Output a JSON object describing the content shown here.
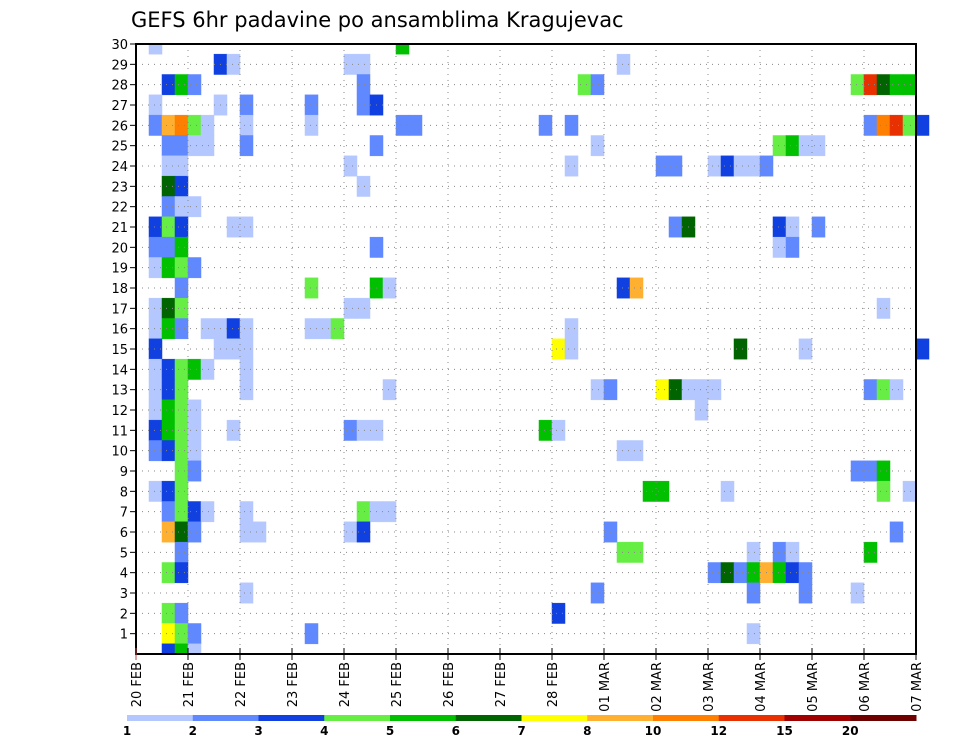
{
  "chart_data": {
    "type": "heatmap",
    "title": "GEFS 6hr padavine po ansamblima Kragujevac",
    "xlabel": "",
    "ylabel": "",
    "x_unit": "6-hour steps from 20 FEB 00z",
    "x_tick_labels": [
      "20 FEB",
      "21 FEB",
      "22 FEB",
      "23 FEB",
      "24 FEB",
      "25 FEB",
      "26 FEB",
      "27 FEB",
      "28 FEB",
      "01 MAR",
      "02 MAR",
      "03 MAR",
      "04 MAR",
      "05 MAR",
      "06 MAR",
      "07 MAR"
    ],
    "xlim": [
      0,
      60
    ],
    "y_ticks": [
      1,
      2,
      3,
      4,
      5,
      6,
      7,
      8,
      9,
      10,
      11,
      12,
      13,
      14,
      15,
      16,
      17,
      18,
      19,
      20,
      21,
      22,
      23,
      24,
      25,
      26,
      27,
      28,
      29,
      30
    ],
    "ylim": [
      0,
      30
    ],
    "grid": true,
    "colorbar": {
      "placement": "bottom",
      "labels": [
        "1",
        "2",
        "3",
        "4",
        "5",
        "6",
        "7",
        "8",
        "10",
        "12",
        "15",
        "20"
      ],
      "levels": [
        1,
        2,
        3,
        4,
        5,
        6,
        7,
        8,
        10,
        12,
        15,
        20
      ],
      "colors": [
        "#b4c8ff",
        "#6088ff",
        "#1040e0",
        "#66ee44",
        "#00c000",
        "#006400",
        "#ffff00",
        "#ffb030",
        "#ff7f00",
        "#e83000",
        "#a00000",
        "#6e0000"
      ]
    },
    "cells_format": "[step, member, level]",
    "cells": [
      [
        1,
        30,
        1
      ],
      [
        20,
        30,
        5
      ],
      [
        6,
        29,
        3
      ],
      [
        7,
        29,
        1
      ],
      [
        16,
        29,
        1
      ],
      [
        17,
        29,
        1
      ],
      [
        37,
        29,
        1
      ],
      [
        2,
        28,
        3
      ],
      [
        3,
        28,
        5
      ],
      [
        4,
        28,
        2
      ],
      [
        17,
        28,
        2
      ],
      [
        34,
        28,
        4
      ],
      [
        35,
        28,
        2
      ],
      [
        55,
        28,
        4
      ],
      [
        56,
        28,
        12
      ],
      [
        57,
        28,
        6
      ],
      [
        58,
        28,
        5
      ],
      [
        59,
        28,
        5
      ],
      [
        1,
        27,
        1
      ],
      [
        6,
        27,
        1
      ],
      [
        8,
        27,
        2
      ],
      [
        13,
        27,
        2
      ],
      [
        17,
        27,
        2
      ],
      [
        18,
        27,
        3
      ],
      [
        1,
        26,
        2
      ],
      [
        2,
        26,
        8
      ],
      [
        3,
        26,
        10
      ],
      [
        4,
        26,
        4
      ],
      [
        5,
        26,
        1
      ],
      [
        8,
        26,
        1
      ],
      [
        13,
        26,
        1
      ],
      [
        20,
        26,
        2
      ],
      [
        21,
        26,
        2
      ],
      [
        31,
        26,
        2
      ],
      [
        33,
        26,
        2
      ],
      [
        56,
        26,
        2
      ],
      [
        57,
        26,
        10
      ],
      [
        58,
        26,
        12
      ],
      [
        59,
        26,
        4
      ],
      [
        60,
        26,
        3
      ],
      [
        2,
        25,
        2
      ],
      [
        3,
        25,
        2
      ],
      [
        4,
        25,
        1
      ],
      [
        5,
        25,
        1
      ],
      [
        8,
        25,
        2
      ],
      [
        18,
        25,
        2
      ],
      [
        35,
        25,
        1
      ],
      [
        49,
        25,
        4
      ],
      [
        50,
        25,
        5
      ],
      [
        51,
        25,
        1
      ],
      [
        52,
        25,
        1
      ],
      [
        2,
        24,
        1
      ],
      [
        3,
        24,
        1
      ],
      [
        16,
        24,
        1
      ],
      [
        33,
        24,
        1
      ],
      [
        40,
        24,
        2
      ],
      [
        41,
        24,
        2
      ],
      [
        44,
        24,
        1
      ],
      [
        45,
        24,
        3
      ],
      [
        46,
        24,
        1
      ],
      [
        47,
        24,
        1
      ],
      [
        48,
        24,
        2
      ],
      [
        2,
        23,
        6
      ],
      [
        3,
        23,
        3
      ],
      [
        17,
        23,
        1
      ],
      [
        2,
        22,
        2
      ],
      [
        3,
        22,
        1
      ],
      [
        4,
        22,
        1
      ],
      [
        1,
        21,
        3
      ],
      [
        2,
        21,
        4
      ],
      [
        3,
        21,
        3
      ],
      [
        7,
        21,
        1
      ],
      [
        8,
        21,
        1
      ],
      [
        41,
        21,
        2
      ],
      [
        42,
        21,
        6
      ],
      [
        49,
        21,
        3
      ],
      [
        50,
        21,
        1
      ],
      [
        52,
        21,
        2
      ],
      [
        1,
        20,
        2
      ],
      [
        2,
        20,
        2
      ],
      [
        3,
        20,
        5
      ],
      [
        18,
        20,
        2
      ],
      [
        49,
        20,
        1
      ],
      [
        50,
        20,
        2
      ],
      [
        1,
        19,
        1
      ],
      [
        2,
        19,
        5
      ],
      [
        3,
        19,
        4
      ],
      [
        4,
        19,
        2
      ],
      [
        3,
        18,
        2
      ],
      [
        13,
        18,
        4
      ],
      [
        18,
        18,
        5
      ],
      [
        19,
        18,
        1
      ],
      [
        37,
        18,
        3
      ],
      [
        38,
        18,
        8
      ],
      [
        1,
        17,
        1
      ],
      [
        2,
        17,
        6
      ],
      [
        3,
        17,
        4
      ],
      [
        16,
        17,
        1
      ],
      [
        17,
        17,
        1
      ],
      [
        57,
        17,
        1
      ],
      [
        1,
        16,
        1
      ],
      [
        2,
        16,
        5
      ],
      [
        3,
        16,
        2
      ],
      [
        5,
        16,
        1
      ],
      [
        6,
        16,
        1
      ],
      [
        7,
        16,
        3
      ],
      [
        8,
        16,
        1
      ],
      [
        13,
        16,
        1
      ],
      [
        14,
        16,
        1
      ],
      [
        15,
        16,
        4
      ],
      [
        33,
        16,
        1
      ],
      [
        1,
        15,
        3
      ],
      [
        6,
        15,
        1
      ],
      [
        7,
        15,
        1
      ],
      [
        8,
        15,
        1
      ],
      [
        32,
        15,
        7
      ],
      [
        33,
        15,
        1
      ],
      [
        46,
        15,
        6
      ],
      [
        51,
        15,
        1
      ],
      [
        60,
        15,
        3
      ],
      [
        1,
        14,
        1
      ],
      [
        2,
        14,
        3
      ],
      [
        3,
        14,
        4
      ],
      [
        4,
        14,
        5
      ],
      [
        5,
        14,
        1
      ],
      [
        8,
        14,
        1
      ],
      [
        1,
        13,
        1
      ],
      [
        2,
        13,
        3
      ],
      [
        3,
        13,
        4
      ],
      [
        8,
        13,
        1
      ],
      [
        19,
        13,
        1
      ],
      [
        35,
        13,
        1
      ],
      [
        36,
        13,
        2
      ],
      [
        40,
        13,
        7
      ],
      [
        41,
        13,
        6
      ],
      [
        42,
        13,
        1
      ],
      [
        43,
        13,
        1
      ],
      [
        44,
        13,
        1
      ],
      [
        56,
        13,
        2
      ],
      [
        57,
        13,
        4
      ],
      [
        58,
        13,
        1
      ],
      [
        1,
        12,
        1
      ],
      [
        2,
        12,
        5
      ],
      [
        3,
        12,
        4
      ],
      [
        4,
        12,
        1
      ],
      [
        43,
        12,
        1
      ],
      [
        1,
        11,
        3
      ],
      [
        2,
        11,
        5
      ],
      [
        3,
        11,
        4
      ],
      [
        4,
        11,
        1
      ],
      [
        7,
        11,
        1
      ],
      [
        16,
        11,
        2
      ],
      [
        17,
        11,
        1
      ],
      [
        18,
        11,
        1
      ],
      [
        31,
        11,
        5
      ],
      [
        32,
        11,
        1
      ],
      [
        1,
        10,
        2
      ],
      [
        2,
        10,
        3
      ],
      [
        3,
        10,
        4
      ],
      [
        4,
        10,
        1
      ],
      [
        37,
        10,
        1
      ],
      [
        38,
        10,
        1
      ],
      [
        3,
        9,
        4
      ],
      [
        4,
        9,
        2
      ],
      [
        55,
        9,
        2
      ],
      [
        56,
        9,
        2
      ],
      [
        57,
        9,
        5
      ],
      [
        1,
        8,
        1
      ],
      [
        2,
        8,
        3
      ],
      [
        3,
        8,
        4
      ],
      [
        39,
        8,
        5
      ],
      [
        40,
        8,
        5
      ],
      [
        45,
        8,
        1
      ],
      [
        57,
        8,
        4
      ],
      [
        59,
        8,
        1
      ],
      [
        2,
        7,
        2
      ],
      [
        3,
        7,
        4
      ],
      [
        4,
        7,
        3
      ],
      [
        5,
        7,
        1
      ],
      [
        8,
        7,
        1
      ],
      [
        17,
        7,
        4
      ],
      [
        18,
        7,
        1
      ],
      [
        19,
        7,
        1
      ],
      [
        2,
        6,
        8
      ],
      [
        3,
        6,
        6
      ],
      [
        4,
        6,
        2
      ],
      [
        8,
        6,
        1
      ],
      [
        9,
        6,
        1
      ],
      [
        16,
        6,
        1
      ],
      [
        17,
        6,
        3
      ],
      [
        36,
        6,
        2
      ],
      [
        58,
        6,
        2
      ],
      [
        3,
        5,
        2
      ],
      [
        37,
        5,
        4
      ],
      [
        38,
        5,
        4
      ],
      [
        47,
        5,
        1
      ],
      [
        49,
        5,
        2
      ],
      [
        50,
        5,
        1
      ],
      [
        56,
        5,
        5
      ],
      [
        2,
        4,
        4
      ],
      [
        3,
        4,
        3
      ],
      [
        44,
        4,
        2
      ],
      [
        45,
        4,
        6
      ],
      [
        46,
        4,
        2
      ],
      [
        47,
        4,
        5
      ],
      [
        48,
        4,
        8
      ],
      [
        49,
        4,
        5
      ],
      [
        50,
        4,
        3
      ],
      [
        51,
        4,
        2
      ],
      [
        8,
        3,
        1
      ],
      [
        35,
        3,
        2
      ],
      [
        47,
        3,
        2
      ],
      [
        51,
        3,
        2
      ],
      [
        55,
        3,
        1
      ],
      [
        2,
        2,
        4
      ],
      [
        3,
        2,
        2
      ],
      [
        32,
        2,
        3
      ],
      [
        2,
        1,
        7
      ],
      [
        3,
        1,
        4
      ],
      [
        4,
        1,
        2
      ],
      [
        13,
        1,
        2
      ],
      [
        47,
        1,
        1
      ],
      [
        2,
        0,
        3
      ],
      [
        3,
        0,
        5
      ],
      [
        4,
        0,
        1
      ]
    ]
  }
}
